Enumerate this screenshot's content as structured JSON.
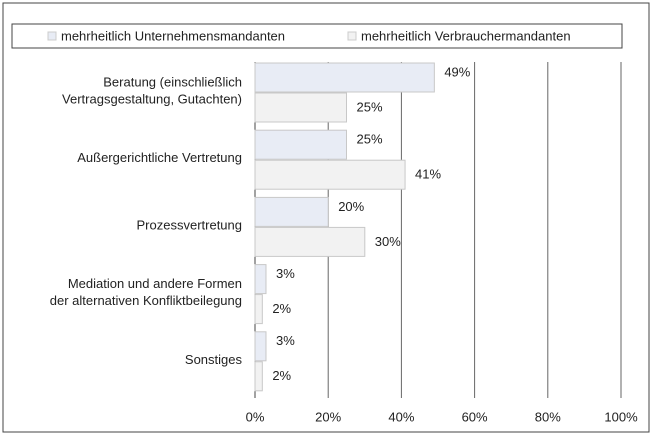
{
  "chart_data": {
    "type": "bar",
    "orientation": "horizontal",
    "categories": [
      "Beratung (einschließlich\nVertragsgestaltung, Gutachten)",
      "Außergerichtliche Vertretung",
      "Prozessvertretung",
      "Mediation und andere Formen\nder alternativen Konfliktbeilegung",
      "Sonstiges"
    ],
    "series": [
      {
        "name": "mehrheitlich Unternehmensmandanten",
        "color": "#e8ecf5",
        "values": [
          49,
          25,
          20,
          3,
          3
        ],
        "value_labels": [
          "49%",
          "25%",
          "20%",
          "3%",
          "3%"
        ]
      },
      {
        "name": "mehrheitlich Verbrauchermandanten",
        "color": "#f2f2f2",
        "values": [
          25,
          41,
          30,
          2,
          2
        ],
        "value_labels": [
          "25%",
          "41%",
          "30%",
          "2%",
          "2%"
        ]
      }
    ],
    "xlim": [
      0,
      100
    ],
    "xticks": [
      {
        "value": 0,
        "label": "0%"
      },
      {
        "value": 20,
        "label": "20%"
      },
      {
        "value": 40,
        "label": "40%"
      },
      {
        "value": 60,
        "label": "60%"
      },
      {
        "value": 80,
        "label": "80%"
      },
      {
        "value": 100,
        "label": "100%"
      }
    ],
    "grid": true,
    "legend": "top"
  }
}
